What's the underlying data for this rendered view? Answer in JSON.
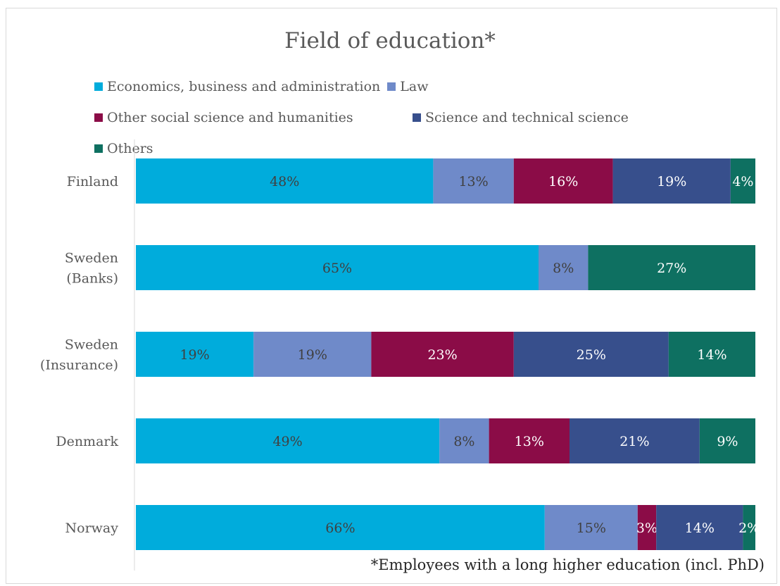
{
  "chart_data": {
    "type": "bar",
    "orientation": "horizontal",
    "stacked": "100%",
    "title": "Field of education*",
    "legend_position": "top",
    "categories": [
      "Finland",
      "Sweden (Banks)",
      "Sweden (Insurance)",
      "Denmark",
      "Norway"
    ],
    "category_lines": [
      [
        "Finland"
      ],
      [
        "Sweden",
        "(Banks)"
      ],
      [
        "Sweden",
        "(Insurance)"
      ],
      [
        "Denmark"
      ],
      [
        "Norway"
      ]
    ],
    "series": [
      {
        "name": "Economics, business and administration",
        "color": "#00acdc",
        "label_color": "#404040",
        "values": [
          48,
          65,
          19,
          49,
          66
        ],
        "labels": [
          "48%",
          "65%",
          "19%",
          "49%",
          "66%"
        ]
      },
      {
        "name": "Law",
        "color": "#6f8ac9",
        "label_color": "#404040",
        "values": [
          13,
          8,
          19,
          8,
          15
        ],
        "labels": [
          "13%",
          "8%",
          "19%",
          "8%",
          "15%"
        ]
      },
      {
        "name": "Other social science and humanities",
        "color": "#8b0c47",
        "label_color": "#ffffff",
        "values": [
          16,
          0,
          23,
          13,
          3
        ],
        "labels": [
          "16%",
          "",
          "23%",
          "13%",
          "3%"
        ]
      },
      {
        "name": "Science and technical science",
        "color": "#374f8c",
        "label_color": "#ffffff",
        "values": [
          19,
          0,
          25,
          21,
          14
        ],
        "labels": [
          "19%",
          "",
          "25%",
          "21%",
          "14%"
        ]
      },
      {
        "name": "Others",
        "color": "#0e7061",
        "label_color": "#ffffff",
        "values": [
          4,
          27,
          14,
          9,
          2
        ],
        "labels": [
          "4%",
          "27%",
          "14%",
          "9%",
          "2%"
        ]
      }
    ],
    "xlim": [
      0,
      100
    ],
    "grid": false
  },
  "footnote": "*Employees with a long higher education (incl. PhD)"
}
